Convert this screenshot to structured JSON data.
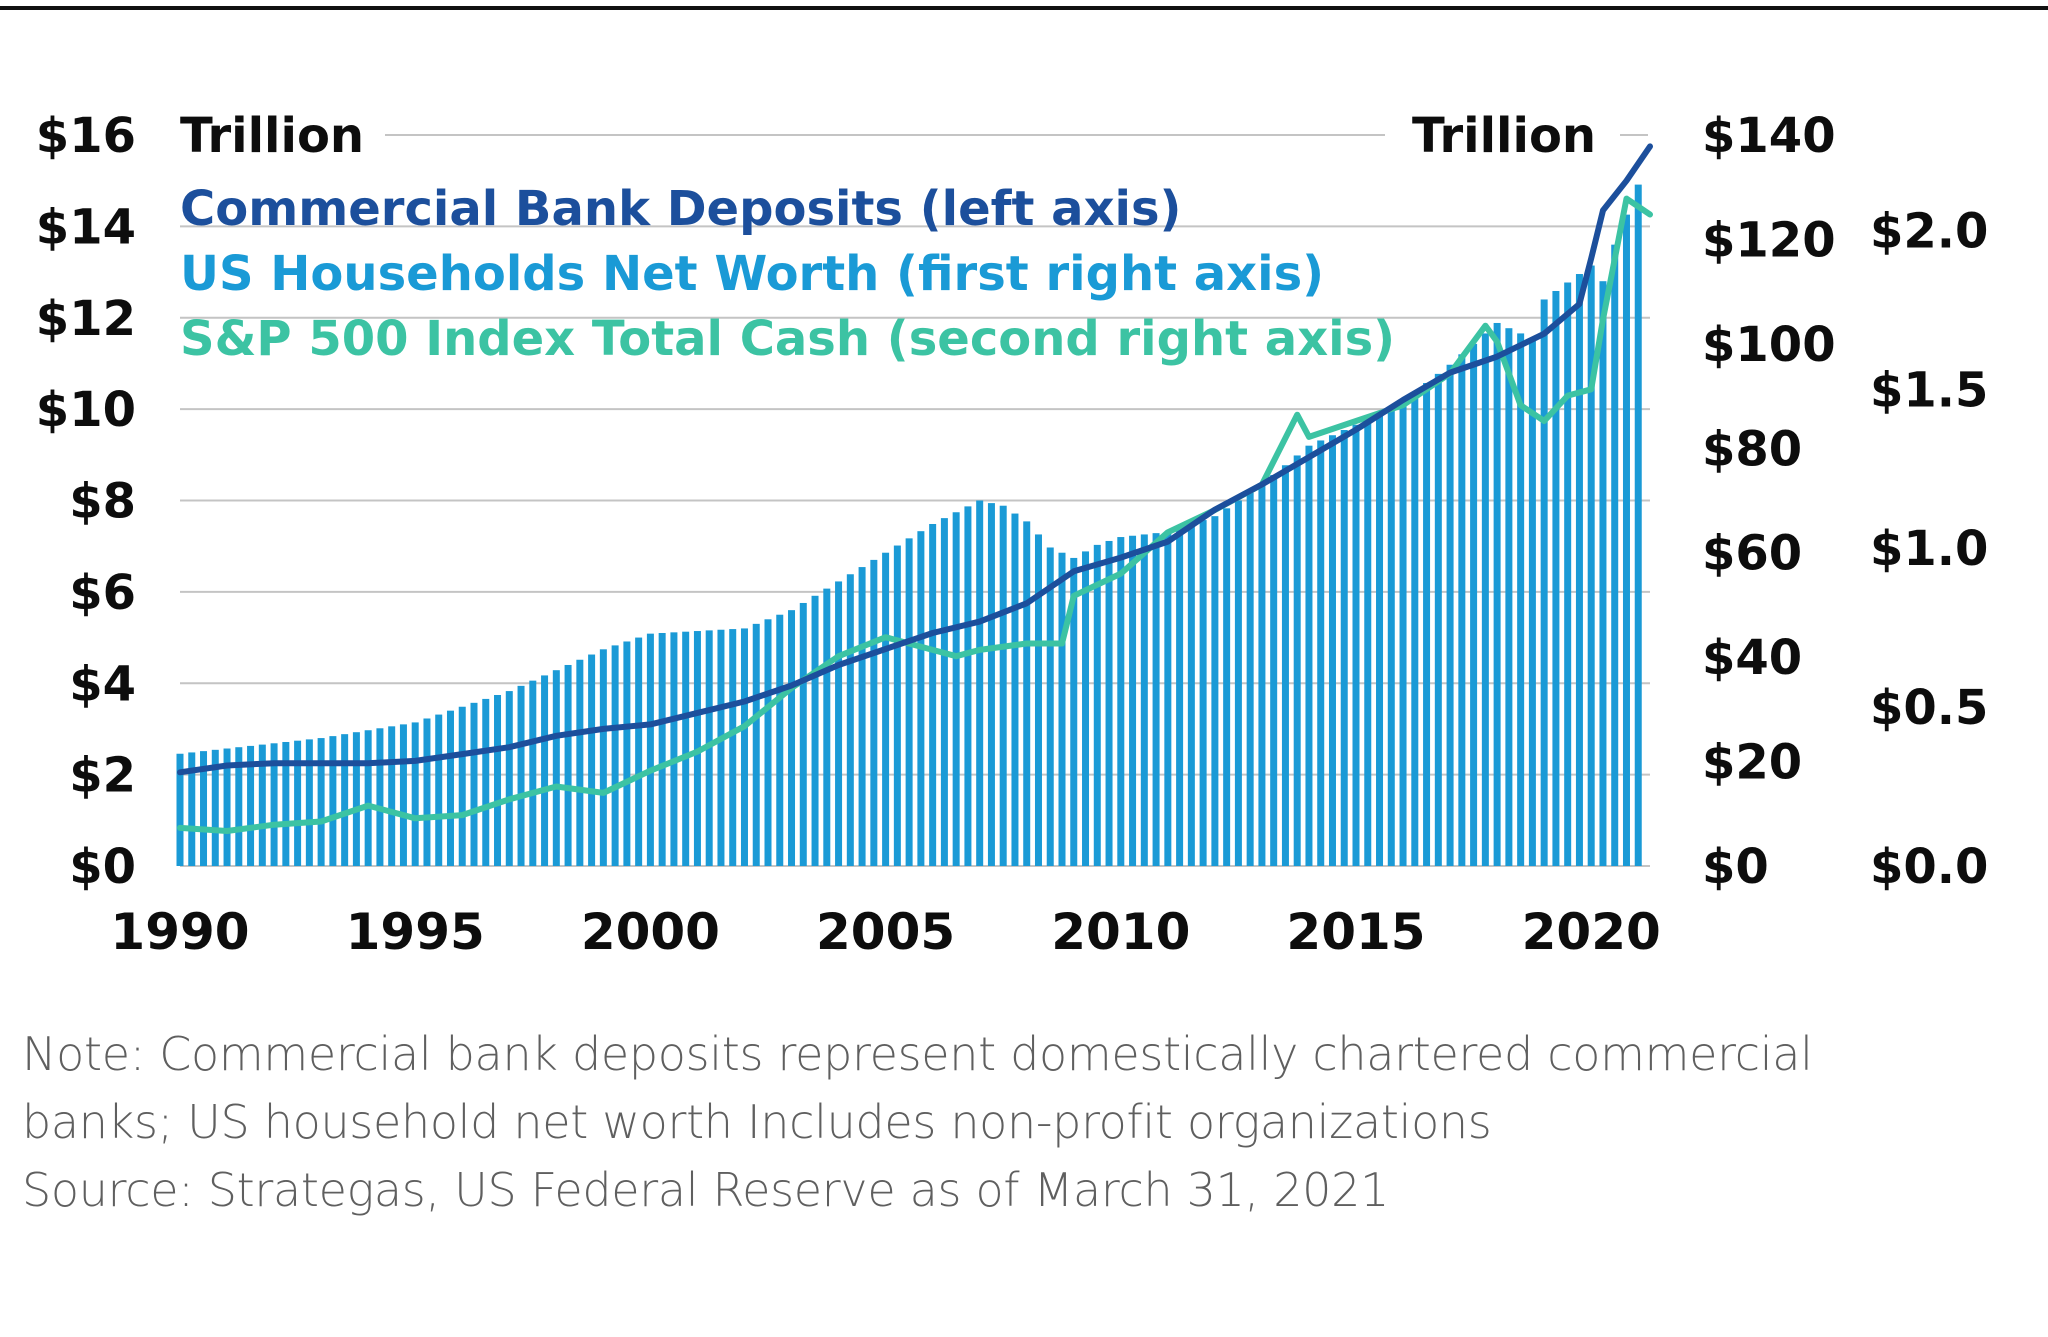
{
  "chart_data": {
    "type": "bar+line",
    "units_left": "Trillion",
    "units_right": "Trillion",
    "legend": [
      {
        "label": "Commercial Bank Deposits (left axis)",
        "color": "#1c4f9c"
      },
      {
        "label": "US Households Net Worth (first right axis)",
        "color": "#1a9ad6"
      },
      {
        "label": "S&P 500 Index Total Cash (second right axis)",
        "color": "#3cc3a3"
      }
    ],
    "left_axis": {
      "ticks": [
        "$0",
        "$2",
        "$4",
        "$6",
        "$8",
        "$10",
        "$12",
        "$14",
        "$16"
      ],
      "range": [
        0,
        16
      ]
    },
    "right_axis_1": {
      "ticks": [
        "$0",
        "$20",
        "$40",
        "$60",
        "$80",
        "$100",
        "$120",
        "$140"
      ],
      "range": [
        0,
        140
      ]
    },
    "right_axis_2": {
      "ticks": [
        "$0.0",
        "$0.5",
        "$1.0",
        "$1.5",
        "$2.0"
      ],
      "range": [
        0,
        2.3
      ]
    },
    "x_axis": {
      "ticks": [
        "1990",
        "1995",
        "2000",
        "2005",
        "2010",
        "2015",
        "2020"
      ],
      "range": [
        1990,
        2021.25
      ]
    },
    "series": [
      {
        "name": "US Households Net Worth",
        "axis": "right_axis_1",
        "kind": "bars",
        "color": "#1a9ad6",
        "points": [
          [
            1990,
            21.5
          ],
          [
            1991,
            22.5
          ],
          [
            1992,
            23.5
          ],
          [
            1993,
            24.5
          ],
          [
            1994,
            26
          ],
          [
            1995,
            27.5
          ],
          [
            1996,
            30.5
          ],
          [
            1997,
            33.5
          ],
          [
            1998,
            37.5
          ],
          [
            1999,
            41.5
          ],
          [
            2000,
            44.5
          ],
          [
            2001,
            45
          ],
          [
            2002,
            45.5
          ],
          [
            2003,
            49
          ],
          [
            2004,
            54.5
          ],
          [
            2005,
            60
          ],
          [
            2006,
            65.5
          ],
          [
            2007,
            70
          ],
          [
            2007.5,
            69
          ],
          [
            2008,
            66
          ],
          [
            2008.5,
            61
          ],
          [
            2009,
            59
          ],
          [
            2009.5,
            61.5
          ],
          [
            2010,
            63
          ],
          [
            2011,
            64
          ],
          [
            2012,
            67
          ],
          [
            2013,
            73
          ],
          [
            2014,
            80.5
          ],
          [
            2015,
            84.5
          ],
          [
            2016,
            89
          ],
          [
            2017,
            96
          ],
          [
            2018,
            104
          ],
          [
            2018.75,
            101
          ],
          [
            2019,
            108.5
          ],
          [
            2020,
            115
          ],
          [
            2020.25,
            112
          ],
          [
            2020.5,
            119
          ],
          [
            2021,
            130.5
          ]
        ]
      },
      {
        "name": "Commercial Bank Deposits",
        "axis": "left_axis",
        "kind": "line",
        "color": "#1c4f9c",
        "points": [
          [
            1990,
            2.05
          ],
          [
            1991,
            2.2
          ],
          [
            1992,
            2.25
          ],
          [
            1993,
            2.25
          ],
          [
            1994,
            2.25
          ],
          [
            1995,
            2.3
          ],
          [
            1996,
            2.45
          ],
          [
            1997,
            2.6
          ],
          [
            1998,
            2.85
          ],
          [
            1999,
            3.0
          ],
          [
            2000,
            3.1
          ],
          [
            2001,
            3.35
          ],
          [
            2002,
            3.6
          ],
          [
            2003,
            3.95
          ],
          [
            2004,
            4.4
          ],
          [
            2005,
            4.75
          ],
          [
            2006,
            5.1
          ],
          [
            2007,
            5.35
          ],
          [
            2008,
            5.75
          ],
          [
            2009,
            6.45
          ],
          [
            2010,
            6.75
          ],
          [
            2011,
            7.1
          ],
          [
            2012,
            7.8
          ],
          [
            2013,
            8.35
          ],
          [
            2014,
            8.95
          ],
          [
            2015,
            9.55
          ],
          [
            2016,
            10.2
          ],
          [
            2017,
            10.8
          ],
          [
            2018,
            11.15
          ],
          [
            2019,
            11.65
          ],
          [
            2019.75,
            12.3
          ],
          [
            2020,
            13.3
          ],
          [
            2020.25,
            14.35
          ],
          [
            2020.75,
            15.0
          ],
          [
            2021.25,
            15.75
          ]
        ]
      },
      {
        "name": "S&P 500 Index Total Cash",
        "axis": "right_axis_2",
        "kind": "line",
        "color": "#3cc3a3",
        "points": [
          [
            1990,
            0.12
          ],
          [
            1991,
            0.11
          ],
          [
            1992,
            0.13
          ],
          [
            1993,
            0.14
          ],
          [
            1994,
            0.19
          ],
          [
            1995,
            0.15
          ],
          [
            1996,
            0.16
          ],
          [
            1997,
            0.21
          ],
          [
            1998,
            0.25
          ],
          [
            1999,
            0.23
          ],
          [
            2000,
            0.3
          ],
          [
            2001,
            0.36
          ],
          [
            2002,
            0.44
          ],
          [
            2003,
            0.56
          ],
          [
            2004,
            0.66
          ],
          [
            2005,
            0.72
          ],
          [
            2006,
            0.68
          ],
          [
            2006.5,
            0.66
          ],
          [
            2007,
            0.68
          ],
          [
            2008,
            0.7
          ],
          [
            2008.75,
            0.7
          ],
          [
            2009,
            0.85
          ],
          [
            2010,
            0.92
          ],
          [
            2011,
            1.05
          ],
          [
            2012,
            1.12
          ],
          [
            2013,
            1.2
          ],
          [
            2013.75,
            1.42
          ],
          [
            2014,
            1.35
          ],
          [
            2015,
            1.4
          ],
          [
            2016,
            1.45
          ],
          [
            2017,
            1.55
          ],
          [
            2017.75,
            1.7
          ],
          [
            2018,
            1.65
          ],
          [
            2018.5,
            1.45
          ],
          [
            2019,
            1.4
          ],
          [
            2019.5,
            1.48
          ],
          [
            2020,
            1.5
          ],
          [
            2020.25,
            1.72
          ],
          [
            2020.75,
            2.1
          ],
          [
            2021.25,
            2.05
          ]
        ]
      }
    ]
  },
  "notes": [
    "Note: Commercial bank deposits represent domestically chartered commercial",
    "banks; US household net worth Includes non-profit organizations",
    "Source: Strategas, US Federal Reserve as of March 31, 2021"
  ]
}
